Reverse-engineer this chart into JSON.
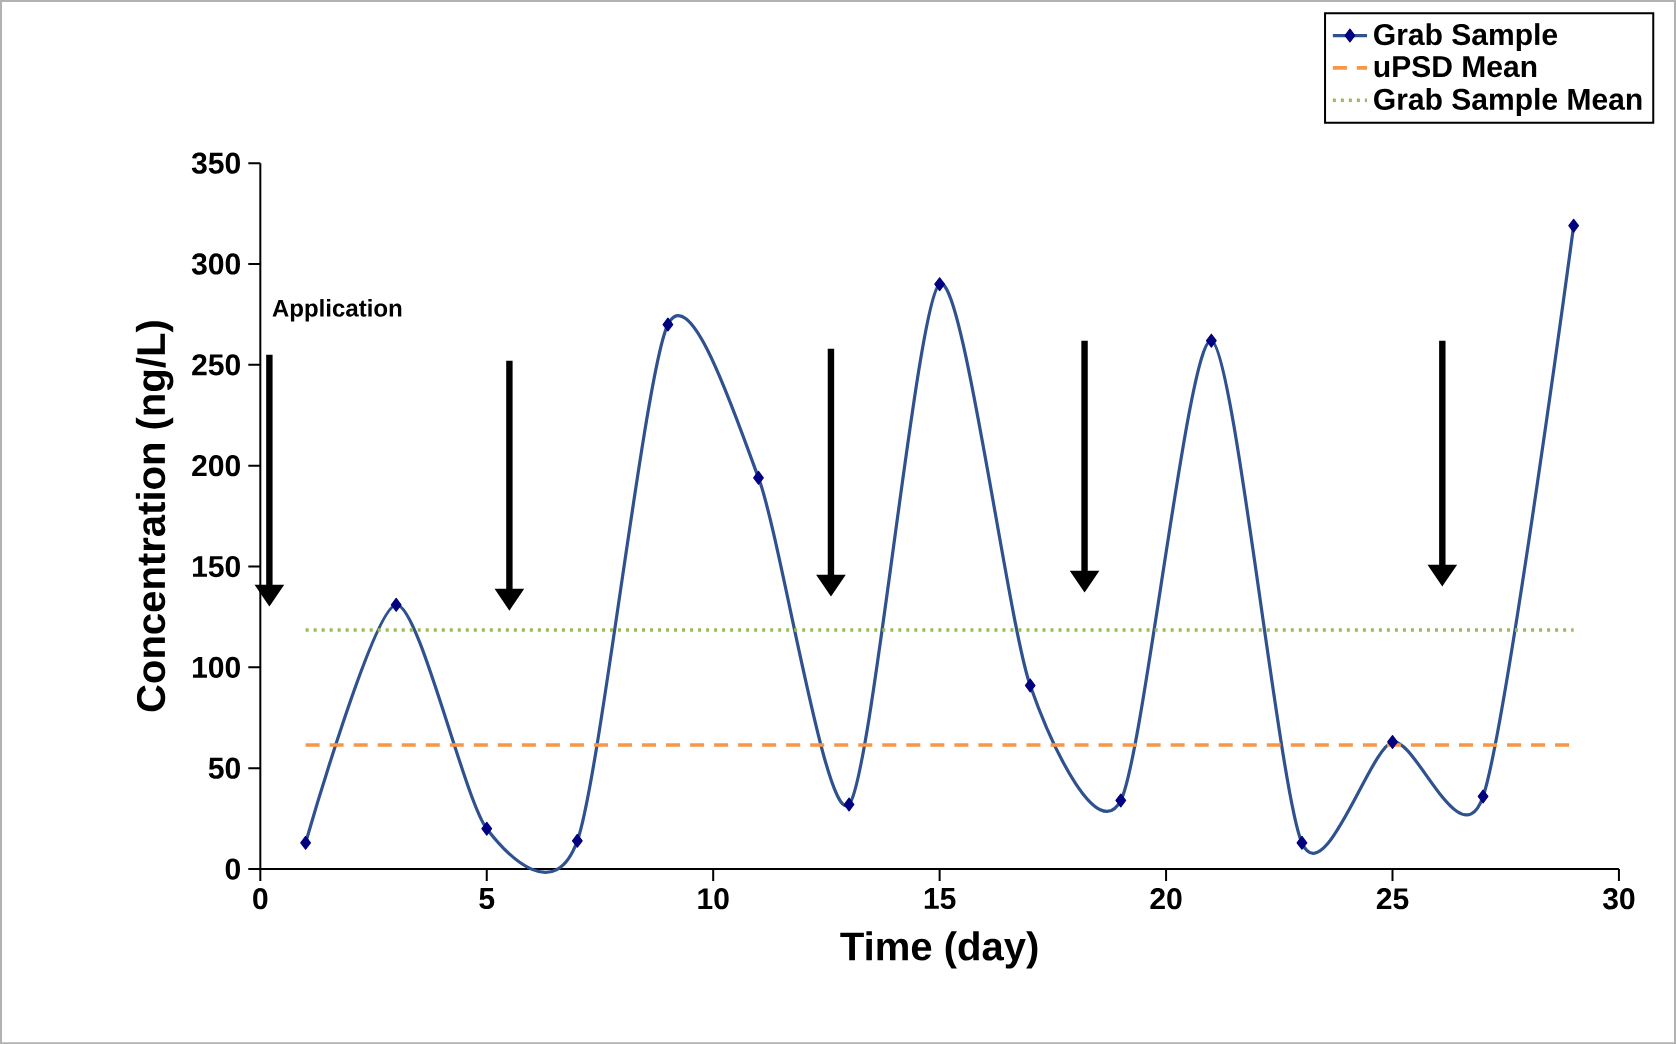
{
  "chart_data": {
    "type": "line",
    "xlabel": "Time (day)",
    "ylabel": "Concentration (ng/L)",
    "x": [
      1,
      3,
      5,
      7,
      9,
      11,
      13,
      15,
      17,
      19,
      21,
      23,
      25,
      27,
      29
    ],
    "series": [
      {
        "name": "Grab Sample",
        "color": "#2f528f",
        "values": [
          13,
          131,
          20,
          14,
          270,
          194,
          32,
          290,
          91,
          34,
          262,
          13,
          63,
          36,
          319
        ]
      }
    ],
    "ref_lines": [
      {
        "axis": "y",
        "value": 61.5,
        "label": "uPSD Mean",
        "color": "#f79646",
        "line_style": "dashed"
      },
      {
        "axis": "y",
        "value": 118.5,
        "label": "Grab Sample Mean",
        "color": "#9bbb59",
        "line_style": "dotted"
      }
    ],
    "annotations": [
      "Application"
    ],
    "xlim": [
      0,
      30
    ],
    "xticks": [
      0,
      5,
      10,
      15,
      20,
      25,
      30
    ],
    "ylim": [
      0,
      350
    ],
    "yticks": [
      0,
      50,
      100,
      150,
      200,
      250,
      300,
      350
    ],
    "marker": "diamond",
    "line_style": "solid",
    "legend": "top right",
    "grid": false
  }
}
